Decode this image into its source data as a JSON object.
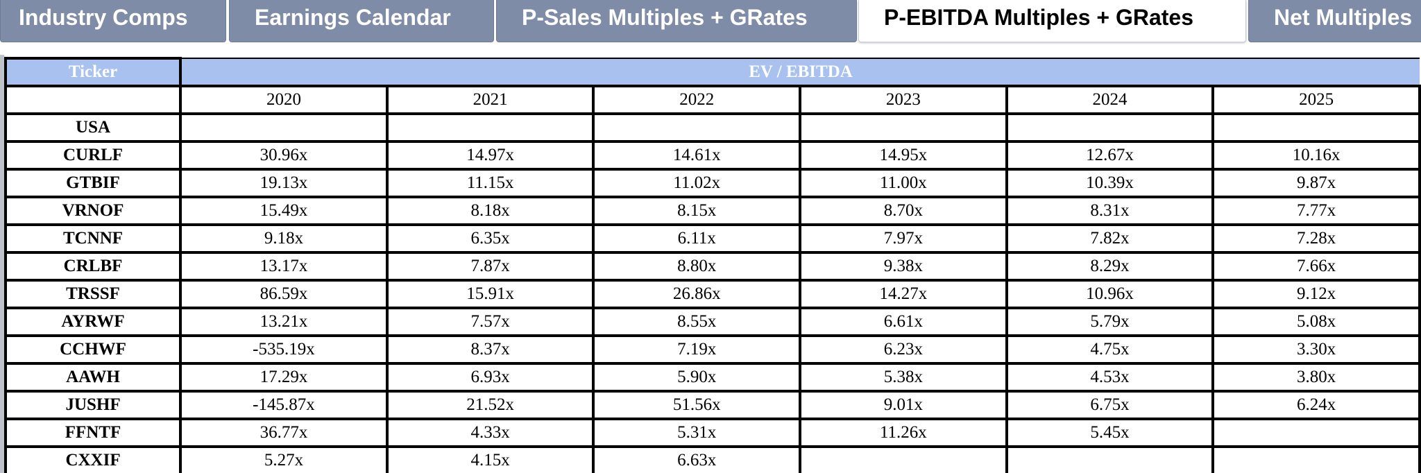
{
  "tabs": [
    {
      "label": "Industry Comps",
      "active": false
    },
    {
      "label": "Earnings Calendar",
      "active": false
    },
    {
      "label": "P-Sales Multiples + GRates",
      "active": false
    },
    {
      "label": "P-EBITDA Multiples + GRates",
      "active": true
    },
    {
      "label": "Net Multiples",
      "active": false
    }
  ],
  "table": {
    "ticker_header": "Ticker",
    "group_header": "EV / EBITDA",
    "years": [
      "2020",
      "2021",
      "2022",
      "2023",
      "2024",
      "2025"
    ],
    "rows": [
      {
        "ticker": "USA",
        "values": [
          "",
          "",
          "",
          "",
          "",
          ""
        ]
      },
      {
        "ticker": "CURLF",
        "values": [
          "30.96x",
          "14.97x",
          "14.61x",
          "14.95x",
          "12.67x",
          "10.16x"
        ]
      },
      {
        "ticker": "GTBIF",
        "values": [
          "19.13x",
          "11.15x",
          "11.02x",
          "11.00x",
          "10.39x",
          "9.87x"
        ]
      },
      {
        "ticker": "VRNOF",
        "values": [
          "15.49x",
          "8.18x",
          "8.15x",
          "8.70x",
          "8.31x",
          "7.77x"
        ]
      },
      {
        "ticker": "TCNNF",
        "values": [
          "9.18x",
          "6.35x",
          "6.11x",
          "7.97x",
          "7.82x",
          "7.28x"
        ]
      },
      {
        "ticker": "CRLBF",
        "values": [
          "13.17x",
          "7.87x",
          "8.80x",
          "9.38x",
          "8.29x",
          "7.66x"
        ]
      },
      {
        "ticker": "TRSSF",
        "values": [
          "86.59x",
          "15.91x",
          "26.86x",
          "14.27x",
          "10.96x",
          "9.12x"
        ]
      },
      {
        "ticker": "AYRWF",
        "values": [
          "13.21x",
          "7.57x",
          "8.55x",
          "6.61x",
          "5.79x",
          "5.08x"
        ]
      },
      {
        "ticker": "CCHWF",
        "values": [
          "-535.19x",
          "8.37x",
          "7.19x",
          "6.23x",
          "4.75x",
          "3.30x"
        ]
      },
      {
        "ticker": "AAWH",
        "values": [
          "17.29x",
          "6.93x",
          "5.90x",
          "5.38x",
          "4.53x",
          "3.80x"
        ]
      },
      {
        "ticker": "JUSHF",
        "values": [
          "-145.87x",
          "21.52x",
          "51.56x",
          "9.01x",
          "6.75x",
          "6.24x"
        ]
      },
      {
        "ticker": "FFNTF",
        "values": [
          "36.77x",
          "4.33x",
          "5.31x",
          "11.26x",
          "5.45x",
          ""
        ]
      },
      {
        "ticker": "CXXIF",
        "values": [
          "5.27x",
          "4.15x",
          "6.63x",
          "",
          "",
          ""
        ]
      }
    ]
  },
  "colors": {
    "tab_inactive": "#7e8ca8",
    "tab_active": "#ffffff",
    "header_fill": "#a8c1ee",
    "header_text": "#ffffff",
    "grid_line": "#000000"
  }
}
